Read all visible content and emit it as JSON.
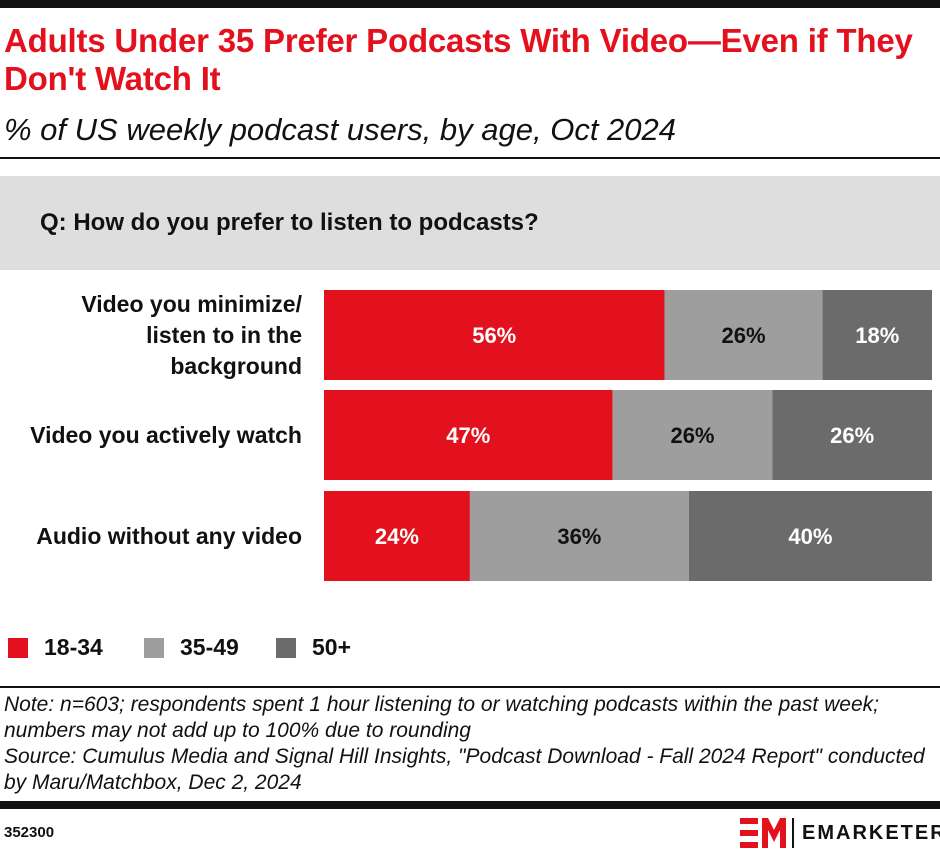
{
  "header": {
    "title": "Adults Under 35 Prefer Podcasts With Video—Even if They Don't Watch It",
    "subtitle": "% of US weekly podcast users, by age, Oct 2024",
    "question": "Q: How do you prefer to listen to podcasts?"
  },
  "chart_data": {
    "type": "bar",
    "orientation": "horizontal",
    "stacked": true,
    "title": "Adults Under 35 Prefer Podcasts With Video—Even if They Don't Watch It",
    "subtitle": "% of US weekly podcast users, by age, Oct 2024",
    "categories": [
      "Video you minimize/ listen to in the background",
      "Video you actively watch",
      "Audio without any video"
    ],
    "category_lines": [
      [
        "Video you minimize/",
        "listen to in the",
        "background"
      ],
      [
        "Video you actively watch"
      ],
      [
        "Audio without any video"
      ]
    ],
    "series": [
      {
        "name": "18-34",
        "color": "#e3111d",
        "label_color": "#ffffff",
        "values": [
          56,
          47,
          24
        ],
        "labels": [
          "56%",
          "47%",
          "24%"
        ]
      },
      {
        "name": "35-49",
        "color": "#9e9e9e",
        "label_color": "#111111",
        "values": [
          26,
          26,
          36
        ],
        "labels": [
          "26%",
          "26%",
          "36%"
        ]
      },
      {
        "name": "50+",
        "color": "#6b6b6b",
        "label_color": "#ffffff",
        "values": [
          18,
          26,
          40
        ],
        "labels": [
          "18%",
          "26%",
          "40%"
        ]
      }
    ],
    "legend_position": "bottom-left",
    "grid": false
  },
  "footer": {
    "note": "Note: n=603; respondents spent 1 hour listening to or watching podcasts within the past week; numbers may not add up to 100% due to rounding",
    "source": "Source: Cumulus Media and Signal Hill Insights, \"Podcast Download - Fall 2024 Report\" conducted by Maru/Matchbox, Dec 2, 2024",
    "chart_id": "352300",
    "brand": "EMARKETER"
  },
  "colors": {
    "accent": "#e3101e",
    "rule": "#111111",
    "band": "#dedede"
  }
}
